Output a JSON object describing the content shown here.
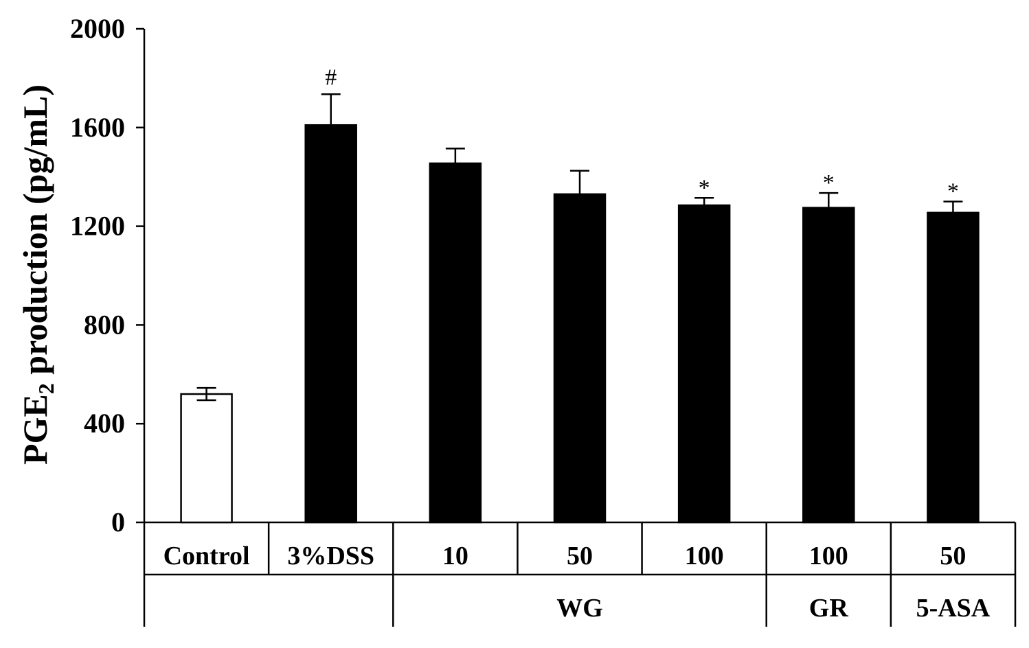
{
  "chart_data": {
    "type": "bar",
    "ylabel_main": "PGE",
    "ylabel_sub": "2",
    "ylabel_rest": " production (pg/mL)",
    "ylim": [
      0,
      2000
    ],
    "yticks": [
      "0",
      "400",
      "800",
      "1200",
      "1600",
      "2000"
    ],
    "ytick_values": [
      0,
      400,
      800,
      1200,
      1600,
      2000
    ],
    "categories": [
      "Control",
      "3%DSS",
      "10",
      "50",
      "100",
      "100",
      "50"
    ],
    "values": [
      520,
      1610,
      1455,
      1330,
      1285,
      1275,
      1255
    ],
    "errors": [
      25,
      125,
      60,
      95,
      30,
      60,
      45
    ],
    "bar_fill": [
      "#ffffff",
      "#000000",
      "#000000",
      "#000000",
      "#000000",
      "#000000",
      "#000000"
    ],
    "annotations": [
      "",
      "#",
      "",
      "",
      "*",
      "*",
      "*"
    ],
    "groups": [
      {
        "label": "",
        "start": 0,
        "end": 1
      },
      {
        "label": "WG",
        "start": 2,
        "end": 4
      },
      {
        "label": "GR",
        "start": 5,
        "end": 5
      },
      {
        "label": "5-ASA",
        "start": 6,
        "end": 6
      }
    ],
    "grid": false,
    "legend": "none"
  }
}
